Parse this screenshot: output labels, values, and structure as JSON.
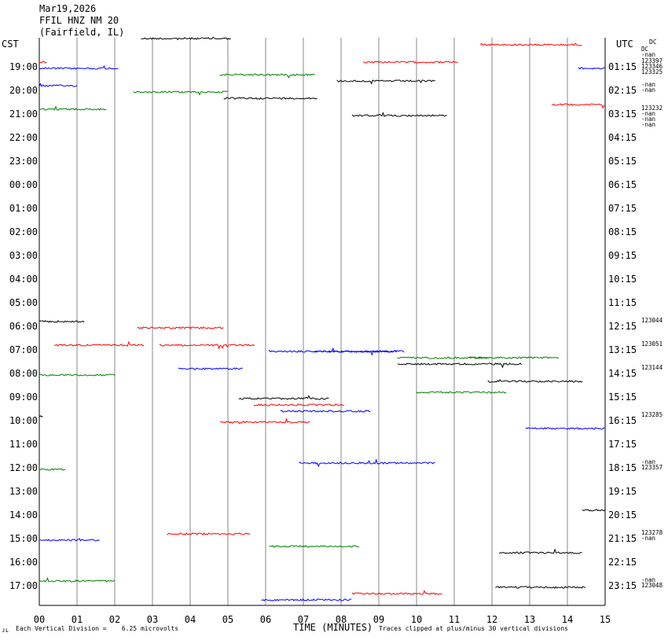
{
  "header": {
    "date": "Mar19,2026",
    "station": "FFIL HNZ NM 20",
    "location": "(Fairfield, IL)"
  },
  "left_axis_title": "CST",
  "right_axis_title": "UTC",
  "dc_label": "DC",
  "footer": {
    "corner_mark": "ᴊʟ",
    "scale": "Each Vertical Division =    6.25 microvolts",
    "x_title": "TIME (MINUTES)",
    "clip_note": "Traces clipped at plus/minus 30 vertical divisions"
  },
  "chart_data": {
    "type": "helicorder",
    "xlabel": "TIME (MINUTES)",
    "xlim": [
      0,
      15
    ],
    "x_ticks": [
      "00",
      "01",
      "02",
      "03",
      "04",
      "05",
      "06",
      "07",
      "08",
      "09",
      "10",
      "11",
      "12",
      "13",
      "14",
      "15"
    ],
    "rows": [
      {
        "cst": "",
        "utc": "",
        "dc": [
          "DC",
          "-nan"
        ],
        "segments": [
          [
            2.7,
            5.1
          ],
          [
            11.7,
            14.4
          ]
        ]
      },
      {
        "cst": "19:00",
        "utc": "01:15",
        "dc": [
          "123397",
          "123346",
          "123325"
        ],
        "segments": [
          [
            0,
            0.2
          ],
          [
            0,
            2.1
          ],
          [
            4.8,
            7.3
          ],
          [
            7.9,
            10.5
          ],
          [
            8.6,
            11.1
          ],
          [
            14.3,
            15.0
          ]
        ]
      },
      {
        "cst": "20:00",
        "utc": "02:15",
        "dc": [
          "-nan",
          "-nan"
        ],
        "segments": [
          [
            0,
            1.0
          ],
          [
            2.5,
            5.0
          ],
          [
            4.9,
            7.4
          ],
          [
            13.6,
            15.0
          ]
        ]
      },
      {
        "cst": "21:00",
        "utc": "03:15",
        "dc": [
          "123232",
          "-nan",
          "-nan",
          "-nan"
        ],
        "segments": [
          [
            0,
            1.8
          ],
          [
            8.3,
            10.8
          ]
        ]
      },
      {
        "cst": "22:00",
        "utc": "04:15",
        "dc": [],
        "segments": []
      },
      {
        "cst": "23:00",
        "utc": "05:15",
        "dc": [],
        "segments": []
      },
      {
        "cst": "00:00",
        "utc": "06:15",
        "dc": [],
        "segments": []
      },
      {
        "cst": "01:00",
        "utc": "07:15",
        "dc": [],
        "segments": []
      },
      {
        "cst": "02:00",
        "utc": "08:15",
        "dc": [],
        "segments": []
      },
      {
        "cst": "03:00",
        "utc": "09:15",
        "dc": [],
        "segments": []
      },
      {
        "cst": "04:00",
        "utc": "10:15",
        "dc": [],
        "segments": []
      },
      {
        "cst": "05:00",
        "utc": "11:15",
        "dc": [],
        "segments": []
      },
      {
        "cst": "06:00",
        "utc": "12:15",
        "dc": [
          "123044"
        ],
        "segments": [
          [
            0,
            1.2
          ],
          [
            2.6,
            4.9
          ]
        ]
      },
      {
        "cst": "07:00",
        "utc": "13:15",
        "dc": [
          "123051"
        ],
        "segments": [
          [
            0.4,
            2.8
          ],
          [
            6.1,
            9.5
          ],
          [
            9.5,
            11.9
          ],
          [
            9.5,
            12.8
          ],
          [
            3.2,
            5.7
          ],
          [
            7.3,
            9.7
          ],
          [
            11.4,
            13.8
          ]
        ]
      },
      {
        "cst": "08:00",
        "utc": "14:15",
        "dc": [
          "123144"
        ],
        "segments": [
          [
            3.7,
            5.4
          ],
          [
            0,
            2.0
          ],
          [
            11.9,
            14.4
          ]
        ]
      },
      {
        "cst": "09:00",
        "utc": "15:15",
        "dc": [],
        "segments": [
          [
            10.0,
            12.4
          ],
          [
            5.3,
            7.7
          ],
          [
            5.7,
            8.1
          ],
          [
            6.4,
            8.8
          ]
        ]
      },
      {
        "cst": "10:00",
        "utc": "16:15",
        "dc": [
          "123285"
        ],
        "segments": [
          [
            0,
            0.1
          ],
          [
            4.8,
            7.2
          ],
          [
            12.9,
            15.0
          ]
        ]
      },
      {
        "cst": "11:00",
        "utc": "17:15",
        "dc": [],
        "segments": []
      },
      {
        "cst": "12:00",
        "utc": "18:15",
        "dc": [
          "-nan",
          "123357"
        ],
        "segments": [
          [
            6.9,
            10.5
          ],
          [
            0,
            0.7
          ]
        ]
      },
      {
        "cst": "13:00",
        "utc": "19:15",
        "dc": [],
        "segments": []
      },
      {
        "cst": "14:00",
        "utc": "20:15",
        "dc": [],
        "segments": [
          [
            14.4,
            15.0
          ]
        ]
      },
      {
        "cst": "15:00",
        "utc": "21:15",
        "dc": [
          "123278",
          "-nan"
        ],
        "segments": [
          [
            3.4,
            5.6
          ],
          [
            0,
            1.6
          ],
          [
            6.1,
            8.5
          ],
          [
            12.2,
            14.4
          ]
        ]
      },
      {
        "cst": "16:00",
        "utc": "22:15",
        "dc": [],
        "segments": []
      },
      {
        "cst": "17:00",
        "utc": "23:15",
        "dc": [
          "-nan",
          "123048"
        ],
        "segments": [
          [
            0,
            2.0
          ],
          [
            12.1,
            14.5
          ],
          [
            8.3,
            10.7
          ],
          [
            5.9,
            8.3
          ]
        ]
      }
    ],
    "trace_colors": [
      "#000000",
      "#ff0000",
      "#0000ff",
      "#008000"
    ]
  }
}
